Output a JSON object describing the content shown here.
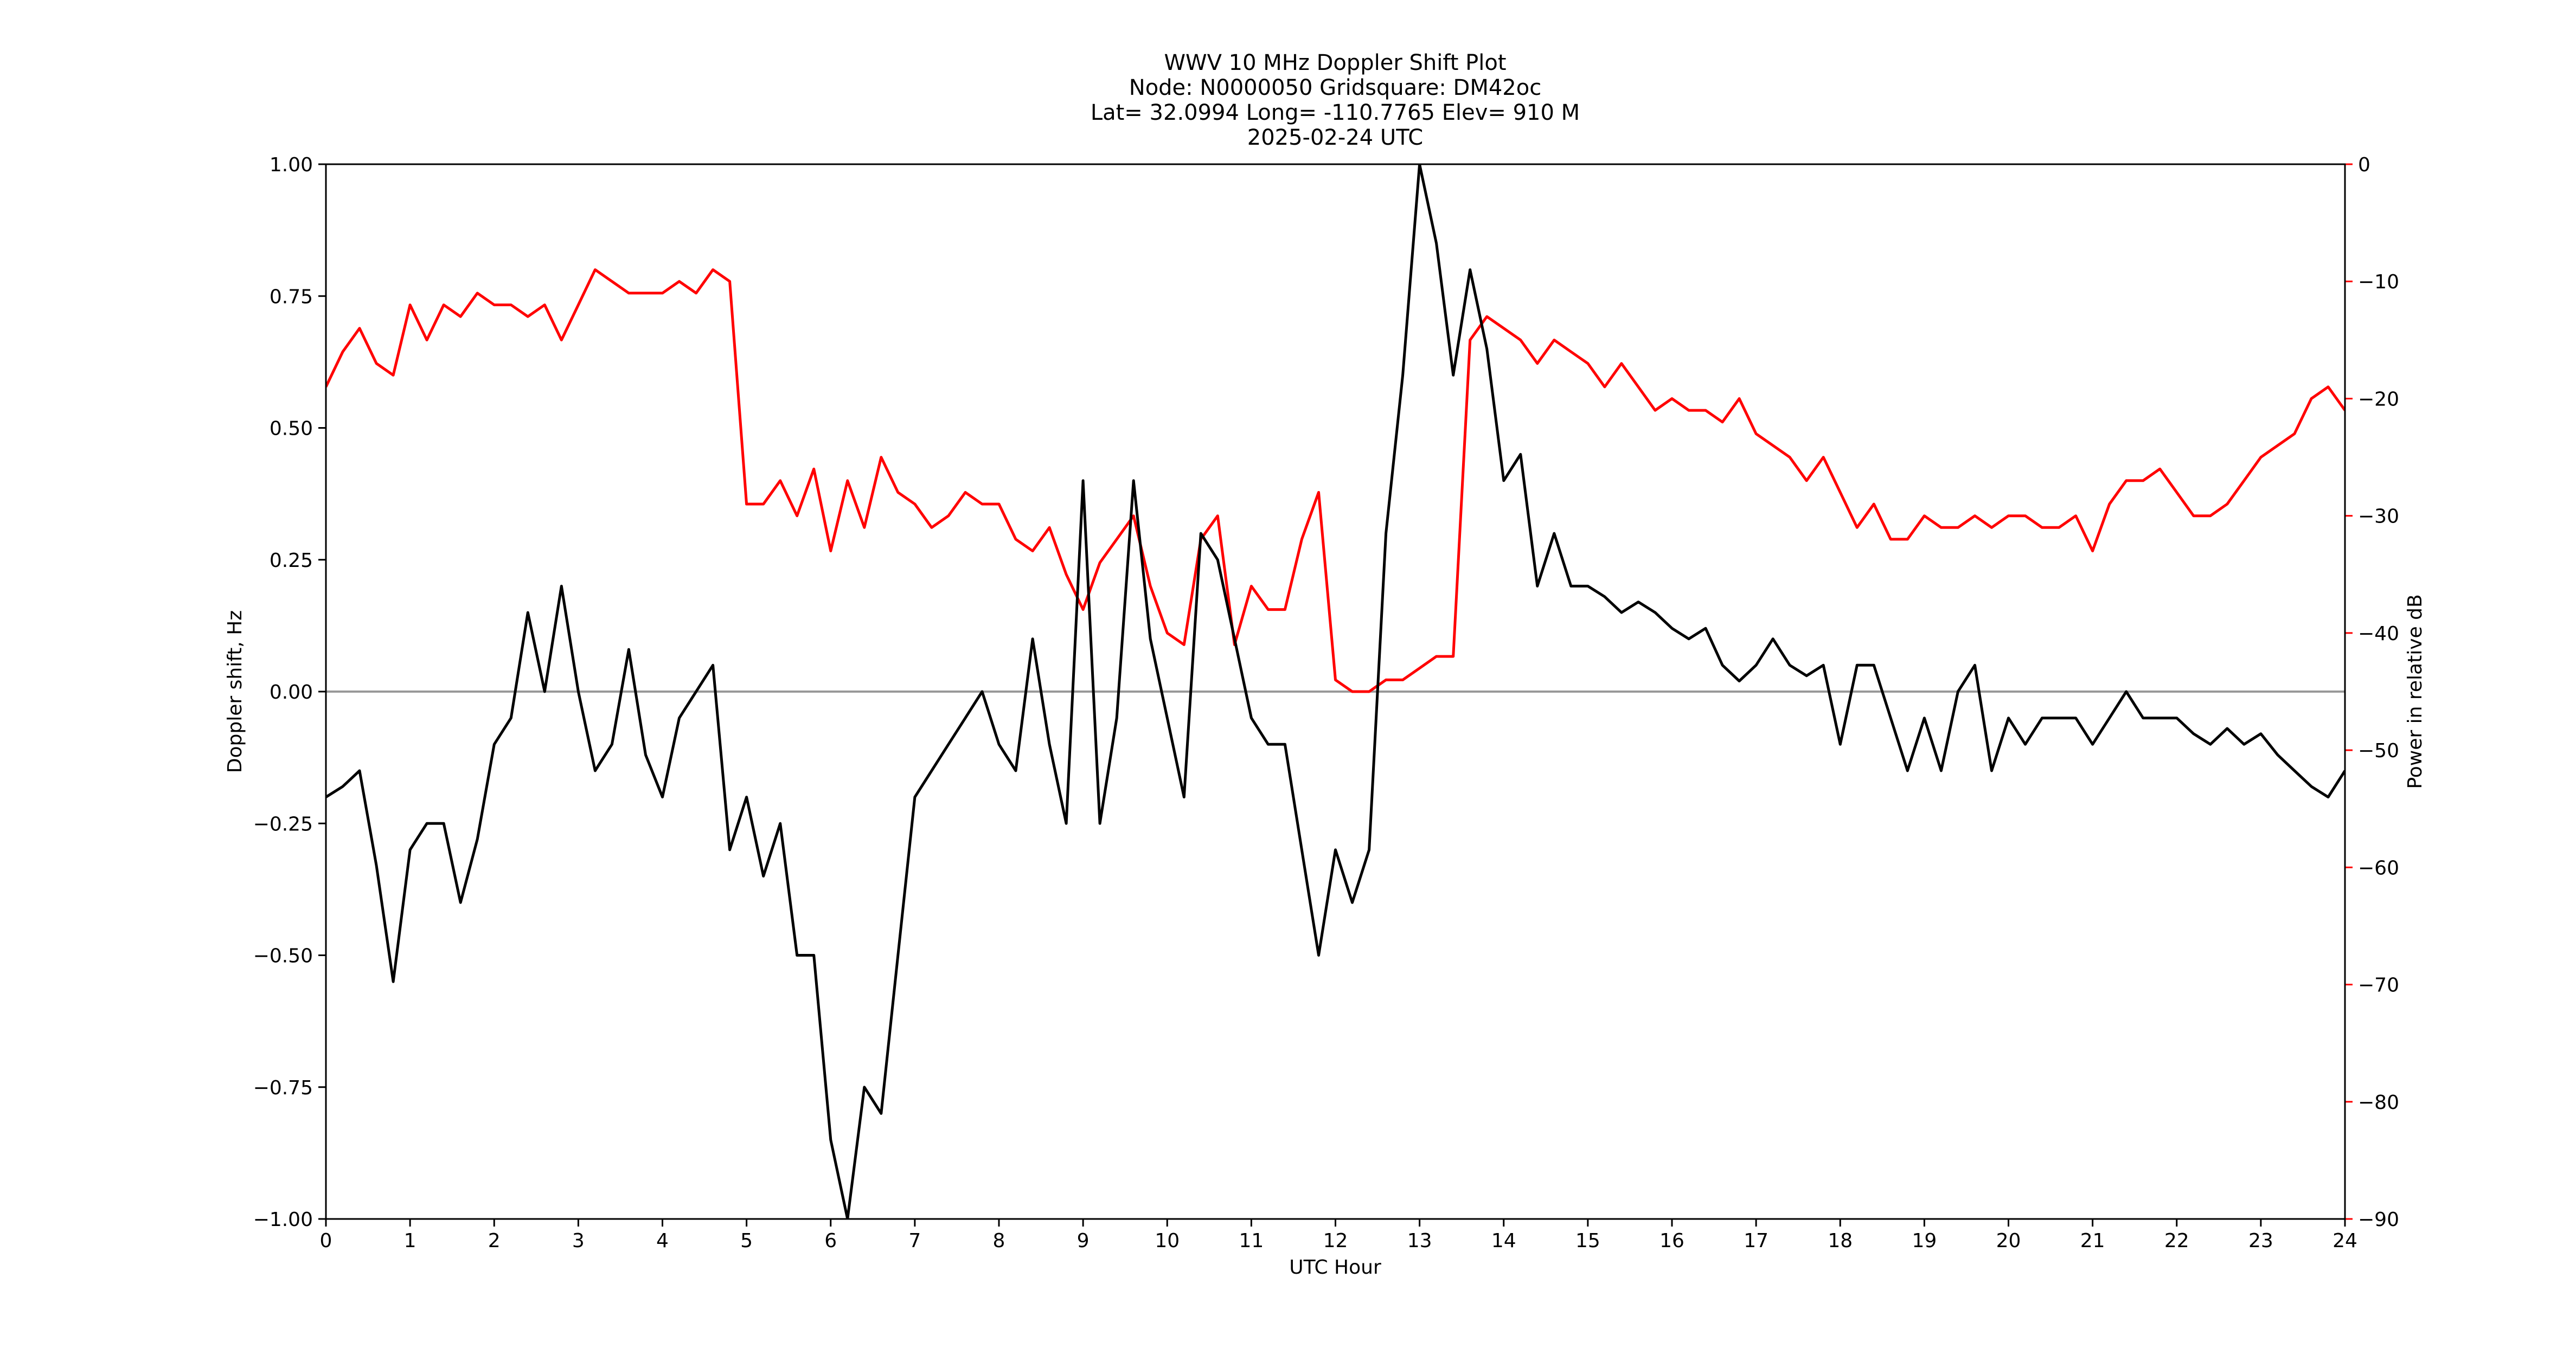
{
  "chart_data": {
    "type": "line",
    "title": [
      "WWV 10 MHz Doppler Shift Plot",
      "Node:  N0000050     Gridsquare:  DM42oc",
      "Lat= 32.0994    Long= -110.7765    Elev= 910 M",
      "2025-02-24  UTC"
    ],
    "xlabel": "UTC Hour",
    "ylabel": "Doppler shift, Hz",
    "y2label": "Power in relative dB",
    "xlim": [
      0,
      24
    ],
    "xticks": [
      0,
      1,
      2,
      3,
      4,
      5,
      6,
      7,
      8,
      9,
      10,
      11,
      12,
      13,
      14,
      15,
      16,
      17,
      18,
      19,
      20,
      21,
      22,
      23,
      24
    ],
    "ylim": [
      -1,
      1
    ],
    "yticks": [
      {
        "value": -1,
        "label": "−1.00"
      },
      {
        "value": -0.75,
        "label": "−0.75"
      },
      {
        "value": -0.5,
        "label": "−0.50"
      },
      {
        "value": -0.25,
        "label": "−0.25"
      },
      {
        "value": 0,
        "label": "0.00"
      },
      {
        "value": 0.25,
        "label": "0.25"
      },
      {
        "value": 0.5,
        "label": "0.50"
      },
      {
        "value": 0.75,
        "label": "0.75"
      },
      {
        "value": 1,
        "label": "1.00"
      }
    ],
    "y2lim": [
      -90,
      0
    ],
    "y2ticks": [
      {
        "value": -90,
        "label": "−90"
      },
      {
        "value": -80,
        "label": "−80"
      },
      {
        "value": -70,
        "label": "−70"
      },
      {
        "value": -60,
        "label": "−60"
      },
      {
        "value": -50,
        "label": "−50"
      },
      {
        "value": -40,
        "label": "−40"
      },
      {
        "value": -30,
        "label": "−30"
      },
      {
        "value": -20,
        "label": "−20"
      },
      {
        "value": -10,
        "label": "−10"
      },
      0
    ],
    "reference_line": 0,
    "reference_line_color": "#999999",
    "x": [
      0,
      0.2,
      0.4,
      0.6,
      0.8,
      1,
      1.2,
      1.4,
      1.6,
      1.8,
      2,
      2.2,
      2.4,
      2.6,
      2.8,
      3,
      3.2,
      3.4,
      3.6,
      3.8,
      4,
      4.2,
      4.4,
      4.6,
      4.8,
      5,
      5.2,
      5.4,
      5.6,
      5.8,
      6,
      6.2,
      6.4,
      6.6,
      6.8,
      7,
      7.2,
      7.4,
      7.6,
      7.8,
      8,
      8.2,
      8.4,
      8.6,
      8.8,
      9,
      9.2,
      9.4,
      9.6,
      9.8,
      10,
      10.2,
      10.4,
      10.6,
      10.8,
      11,
      11.2,
      11.4,
      11.6,
      11.8,
      12,
      12.2,
      12.4,
      12.6,
      12.8,
      13,
      13.2,
      13.4,
      13.6,
      13.8,
      14,
      14.2,
      14.4,
      14.6,
      14.8,
      15,
      15.2,
      15.4,
      15.6,
      15.8,
      16,
      16.2,
      16.4,
      16.6,
      16.8,
      17,
      17.2,
      17.4,
      17.6,
      17.8,
      18,
      18.2,
      18.4,
      18.6,
      18.8,
      19,
      19.2,
      19.4,
      19.6,
      19.8,
      20,
      20.2,
      20.4,
      20.6,
      20.8,
      21,
      21.2,
      21.4,
      21.6,
      21.8,
      22,
      22.2,
      22.4,
      22.6,
      22.8,
      23,
      23.2,
      23.4,
      23.6,
      23.8,
      24
    ],
    "series": [
      {
        "color": "#000000",
        "axis": "y",
        "values": [
          -0.2,
          -0.18,
          -0.15,
          -0.33,
          -0.55,
          -0.3,
          -0.25,
          -0.25,
          -0.4,
          -0.28,
          -0.1,
          -0.05,
          0.15,
          0,
          0.2,
          0,
          -0.15,
          -0.1,
          0.08,
          -0.12,
          -0.2,
          -0.05,
          0,
          0.05,
          -0.3,
          -0.2,
          -0.35,
          -0.25,
          -0.5,
          -0.5,
          -0.85,
          -1,
          -0.75,
          -0.8,
          -0.5,
          -0.2,
          -0.15,
          -0.1,
          -0.05,
          0,
          -0.1,
          -0.15,
          0.1,
          -0.1,
          -0.25,
          0.4,
          -0.25,
          -0.05,
          0.4,
          0.1,
          -0.05,
          -0.2,
          0.3,
          0.25,
          0.1,
          -0.05,
          -0.1,
          -0.1,
          -0.3,
          -0.5,
          -0.3,
          -0.4,
          -0.3,
          0.3,
          0.6,
          1,
          0.85,
          0.6,
          0.8,
          0.65,
          0.4,
          0.45,
          0.2,
          0.3,
          0.2,
          0.2,
          0.18,
          0.15,
          0.17,
          0.15,
          0.12,
          0.1,
          0.12,
          0.05,
          0.02,
          0.05,
          0.1,
          0.05,
          0.03,
          0.05,
          -0.1,
          0.05,
          0.05,
          -0.05,
          -0.15,
          -0.05,
          -0.15,
          0,
          0.05,
          -0.15,
          -0.05,
          -0.1,
          -0.05,
          -0.05,
          -0.05,
          -0.1,
          -0.05,
          0,
          -0.05,
          -0.05,
          -0.05,
          -0.08,
          -0.1,
          -0.07,
          -0.1,
          -0.08,
          -0.12,
          -0.15,
          -0.18,
          -0.2,
          -0.15
        ]
      },
      {
        "color": "#ff0000",
        "axis": "y2",
        "values": [
          -19,
          -16,
          -14,
          -17,
          -18,
          -12,
          -15,
          -12,
          -13,
          -11,
          -12,
          -12,
          -13,
          -12,
          -15,
          -12,
          -9,
          -10,
          -11,
          -11,
          -11,
          -10,
          -11,
          -9,
          -10,
          -29,
          -29,
          -27,
          -30,
          -26,
          -33,
          -27,
          -31,
          -25,
          -28,
          -29,
          -31,
          -30,
          -28,
          -29,
          -29,
          -32,
          -33,
          -31,
          -35,
          -38,
          -34,
          -32,
          -30,
          -36,
          -40,
          -41,
          -32,
          -30,
          -41,
          -36,
          -38,
          -38,
          -32,
          -28,
          -44,
          -45,
          -45,
          -44,
          -44,
          -43,
          -42,
          -42,
          -15,
          -13,
          -14,
          -15,
          -17,
          -15,
          -16,
          -17,
          -19,
          -17,
          -19,
          -21,
          -20,
          -21,
          -21,
          -22,
          -20,
          -23,
          -24,
          -25,
          -27,
          -25,
          -28,
          -31,
          -29,
          -32,
          -32,
          -30,
          -31,
          -31,
          -30,
          -31,
          -30,
          -30,
          -31,
          -31,
          -30,
          -33,
          -29,
          -27,
          -27,
          -26,
          -28,
          -30,
          -30,
          -29,
          -27,
          -25,
          -24,
          -23,
          -20,
          -19,
          -21
        ]
      }
    ]
  }
}
